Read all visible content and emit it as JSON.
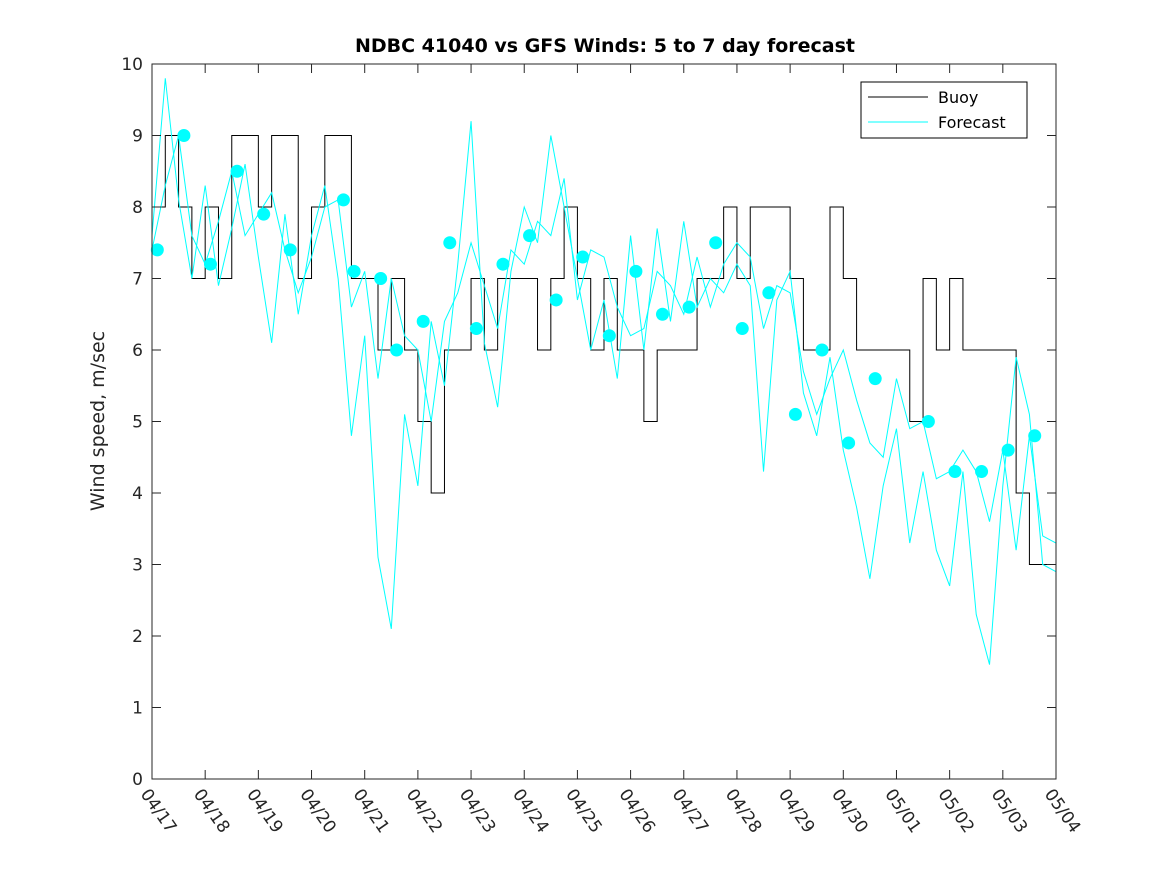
{
  "chart_data": {
    "type": "line",
    "title": "NDBC 41040 vs GFS Winds: 5 to 7 day forecast",
    "xlabel": "",
    "ylabel": "Wind speed, m/sec",
    "xlim": [
      "04/17",
      "05/04"
    ],
    "ylim": [
      0,
      10
    ],
    "yticks": [
      0,
      1,
      2,
      3,
      4,
      5,
      6,
      7,
      8,
      9,
      10
    ],
    "xticks": [
      "04/17",
      "04/18",
      "04/19",
      "04/20",
      "04/21",
      "04/22",
      "04/23",
      "04/24",
      "04/25",
      "04/26",
      "04/27",
      "04/28",
      "04/29",
      "04/30",
      "05/01",
      "05/02",
      "05/03",
      "05/04"
    ],
    "grid": false,
    "legend": {
      "placement": "top-right",
      "entries": [
        {
          "label": "Buoy",
          "color": "#000000"
        },
        {
          "label": "Forecast",
          "color": "#00ffff"
        }
      ]
    },
    "series": [
      {
        "name": "Buoy",
        "color": "#000000",
        "x_days_since_0417": [
          0.0,
          0.25,
          0.5,
          0.75,
          1.0,
          1.25,
          1.5,
          1.75,
          2.0,
          2.25,
          2.5,
          2.75,
          3.0,
          3.25,
          3.5,
          3.75,
          4.0,
          4.25,
          4.5,
          4.75,
          5.0,
          5.25,
          5.5,
          5.75,
          6.0,
          6.25,
          6.5,
          6.75,
          7.0,
          7.25,
          7.5,
          7.75,
          8.0,
          8.25,
          8.5,
          8.75,
          9.0,
          9.25,
          9.5,
          9.75,
          10.0,
          10.25,
          10.5,
          10.75,
          11.0,
          11.25,
          11.5,
          11.75,
          12.0,
          12.25,
          12.5,
          12.75,
          13.0,
          13.25,
          13.5,
          13.75,
          14.0,
          14.25,
          14.5,
          14.75,
          15.0,
          15.25,
          15.5,
          15.75,
          16.0,
          16.25,
          16.5,
          16.75,
          17.0
        ],
        "values": [
          8,
          9,
          8,
          7,
          8,
          7,
          9,
          9,
          8,
          9,
          9,
          7,
          8,
          9,
          9,
          7,
          7,
          6,
          7,
          6,
          5,
          4,
          6,
          6,
          7,
          6,
          7,
          7,
          7,
          6,
          7,
          8,
          7,
          6,
          7,
          6,
          6,
          5,
          6,
          6,
          6,
          7,
          7,
          8,
          7,
          8,
          8,
          8,
          7,
          6,
          6,
          8,
          7,
          6,
          6,
          6,
          6,
          5,
          7,
          6,
          7,
          6,
          6,
          6,
          6,
          4,
          3,
          3,
          3
        ]
      },
      {
        "name": "Forecast",
        "color": "#00ffff",
        "x_days_since_0417": [
          0.0,
          0.25,
          0.5,
          0.75,
          1.0,
          1.25,
          1.5,
          1.75,
          2.0,
          2.25,
          2.5,
          2.75,
          3.0,
          3.25,
          3.5,
          3.75,
          4.0,
          4.25,
          4.5,
          4.75,
          5.0,
          5.25,
          5.5,
          5.75,
          6.0,
          6.25,
          6.5,
          6.75,
          7.0,
          7.25,
          7.5,
          7.75,
          8.0,
          8.25,
          8.5,
          8.75,
          9.0,
          9.25,
          9.5,
          9.75,
          10.0,
          10.25,
          10.5,
          10.75,
          11.0,
          11.25,
          11.5,
          11.75,
          12.0,
          12.25,
          12.5,
          12.75,
          13.0,
          13.25,
          13.5,
          13.75,
          14.0,
          14.25,
          14.5,
          14.75,
          15.0,
          15.25,
          15.5,
          15.75,
          16.0,
          16.25,
          16.5,
          16.75,
          17.0
        ],
        "values": [
          7.4,
          8.3,
          9.0,
          7.6,
          7.2,
          7.8,
          8.5,
          7.6,
          7.9,
          8.2,
          7.4,
          6.8,
          7.3,
          8.0,
          8.1,
          6.6,
          7.1,
          5.6,
          7.0,
          6.2,
          6.0,
          5.0,
          6.4,
          6.8,
          7.5,
          6.9,
          6.3,
          7.4,
          7.2,
          7.8,
          7.6,
          8.4,
          6.7,
          7.4,
          7.3,
          6.6,
          6.2,
          6.3,
          7.1,
          6.9,
          6.5,
          7.3,
          6.6,
          7.2,
          7.5,
          7.3,
          6.3,
          6.9,
          6.8,
          5.7,
          5.1,
          5.6,
          6.0,
          5.3,
          4.7,
          4.5,
          5.6,
          4.9,
          5.0,
          4.2,
          4.3,
          4.6,
          4.3,
          3.6,
          4.6,
          3.2,
          4.8,
          3.4,
          3.3
        ]
      },
      {
        "name": "Forecast",
        "color": "#00ffff",
        "x_days_since_0417": [
          0.0,
          0.25,
          0.5,
          0.75,
          1.0,
          1.25,
          1.5,
          1.75,
          2.0,
          2.25,
          2.5,
          2.75,
          3.0,
          3.25,
          3.5,
          3.75,
          4.0,
          4.25,
          4.5,
          4.75,
          5.0,
          5.25,
          5.5,
          5.75,
          6.0,
          6.25,
          6.5,
          6.75,
          7.0,
          7.25,
          7.5,
          7.75,
          8.0,
          8.25,
          8.5,
          8.75,
          9.0,
          9.25,
          9.5,
          9.75,
          10.0,
          10.25,
          10.5,
          10.75,
          11.0,
          11.25,
          11.5,
          11.75,
          12.0,
          12.25,
          12.5,
          12.75,
          13.0,
          13.25,
          13.5,
          13.75,
          14.0,
          14.25,
          14.5,
          14.75,
          15.0,
          15.25,
          15.5,
          15.75,
          16.0,
          16.25,
          16.5,
          16.75,
          17.0
        ],
        "values": [
          7.6,
          9.8,
          8.1,
          7.0,
          8.3,
          6.9,
          7.7,
          8.6,
          7.3,
          6.1,
          7.9,
          6.5,
          7.6,
          8.3,
          7.0,
          4.8,
          6.2,
          3.1,
          2.1,
          5.1,
          4.1,
          6.4,
          5.5,
          7.2,
          9.2,
          6.1,
          5.2,
          7.1,
          8.0,
          7.5,
          9.0,
          8.0,
          7.0,
          6.0,
          6.7,
          5.6,
          7.6,
          6.0,
          7.7,
          6.4,
          7.8,
          6.6,
          7.0,
          6.8,
          7.2,
          6.9,
          4.3,
          6.7,
          7.1,
          5.4,
          4.8,
          5.9,
          4.6,
          3.8,
          2.8,
          4.1,
          4.9,
          3.3,
          4.3,
          3.2,
          2.7,
          4.3,
          2.3,
          1.6,
          4.1,
          5.9,
          5.1,
          3.0,
          2.9
        ]
      }
    ],
    "markers": {
      "name": "Forecast",
      "color": "#00ffff",
      "x_days_since_0417": [
        0.1,
        0.6,
        1.1,
        1.6,
        2.1,
        2.6,
        3.6,
        3.8,
        4.3,
        4.6,
        5.1,
        5.6,
        6.1,
        6.6,
        7.1,
        7.6,
        8.1,
        8.6,
        9.1,
        9.6,
        10.1,
        10.6,
        11.1,
        11.6,
        12.1,
        12.6,
        13.1,
        13.6,
        14.6,
        15.1,
        15.6,
        16.1,
        16.6
      ],
      "values": [
        7.4,
        9.0,
        7.2,
        8.5,
        7.9,
        7.4,
        8.1,
        7.1,
        7.0,
        6.0,
        6.4,
        7.5,
        6.3,
        7.2,
        7.6,
        6.7,
        7.3,
        6.2,
        7.1,
        6.5,
        6.6,
        7.5,
        6.3,
        6.8,
        5.1,
        6.0,
        4.7,
        5.6,
        5.0,
        4.3,
        4.3,
        4.6,
        4.8
      ]
    }
  }
}
